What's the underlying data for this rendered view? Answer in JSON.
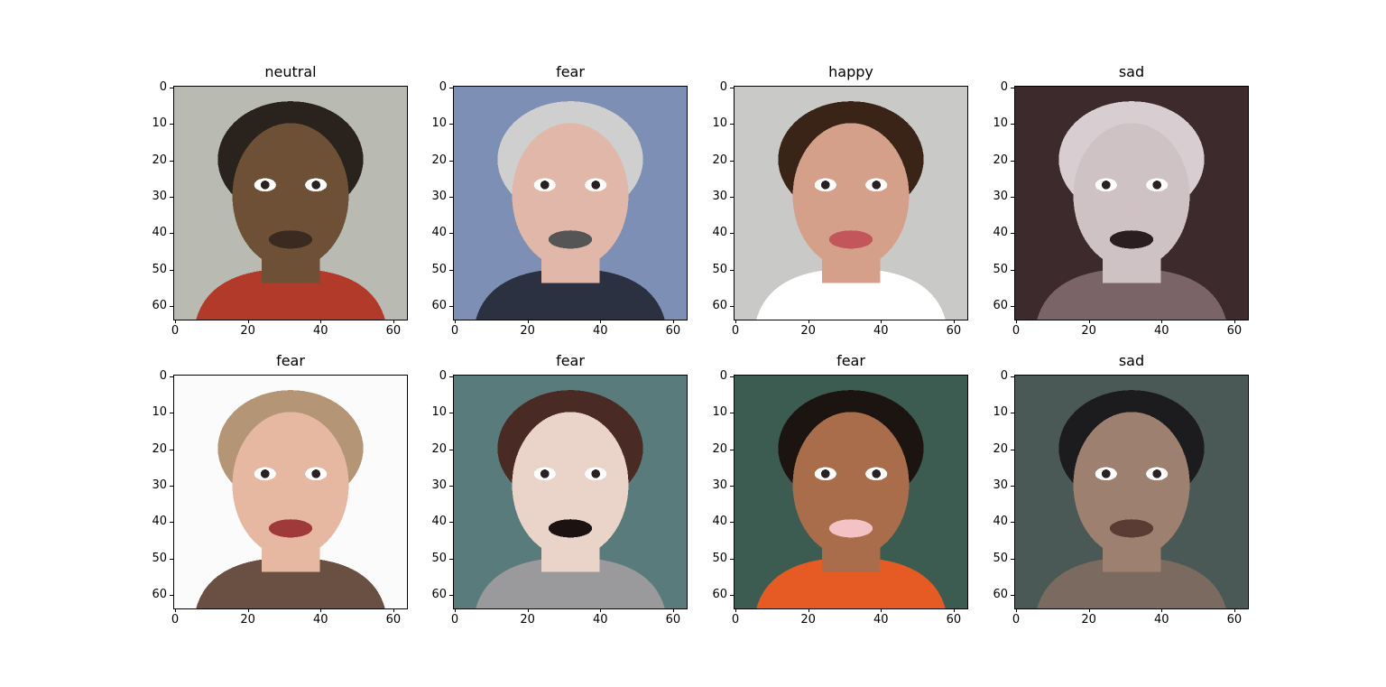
{
  "chart_data": {
    "type": "image-grid",
    "grid": {
      "rows": 2,
      "cols": 4
    },
    "xlim": [
      0,
      64
    ],
    "ylim": [
      64,
      0
    ],
    "xticks": [
      0,
      20,
      40,
      60
    ],
    "yticks": [
      0,
      10,
      20,
      30,
      40,
      50,
      60
    ],
    "panels": [
      {
        "title": "neutral",
        "bg": "#b9bbb3",
        "skin": "#6e5036",
        "hair": "#2a221d",
        "shirt": "#b23a2a",
        "accent": "#3a2a20"
      },
      {
        "title": "fear",
        "bg": "#7d8fb5",
        "skin": "#e0b7a8",
        "hair": "#cfcfcf",
        "shirt": "#2b3140",
        "accent": "#555555"
      },
      {
        "title": "happy",
        "bg": "#c9c9c7",
        "skin": "#d4a08a",
        "hair": "#3a2418",
        "shirt": "#ffffff",
        "accent": "#c2565a"
      },
      {
        "title": "sad",
        "bg": "#3d2a2c",
        "skin": "#cfc2c4",
        "hair": "#d8cdd0",
        "shirt": "#7a6468",
        "accent": "#2a1e20"
      },
      {
        "title": "fear",
        "bg": "#fbfbfb",
        "skin": "#e6b7a1",
        "hair": "#b49576",
        "shirt": "#6a5042",
        "accent": "#a03a3a"
      },
      {
        "title": "fear",
        "bg": "#5a7b7c",
        "skin": "#ead3c8",
        "hair": "#4a2a24",
        "shirt": "#9a9a9c",
        "accent": "#1c1212"
      },
      {
        "title": "fear",
        "bg": "#3c5c52",
        "skin": "#a96d4c",
        "hair": "#1c1410",
        "shirt": "#e65a24",
        "accent": "#f2c2c4"
      },
      {
        "title": "sad",
        "bg": "#4a5856",
        "skin": "#9e8070",
        "hair": "#1c1c1e",
        "shirt": "#7a6a60",
        "accent": "#5a3c34"
      }
    ]
  }
}
